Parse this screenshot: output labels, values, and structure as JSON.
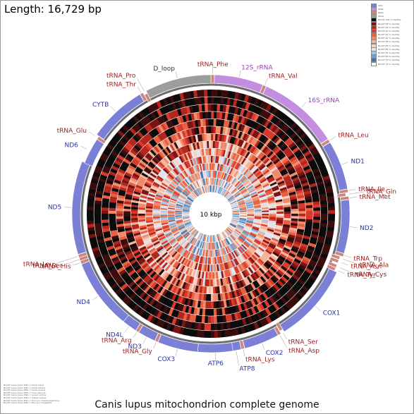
{
  "header": {
    "length_label": "Length: 16,729 bp"
  },
  "caption": "Canis lupus mitochondrion complete genome",
  "genome": {
    "length": 16729,
    "center_label": "10 kbp",
    "rings": 14,
    "colors": {
      "gene": "#7b7fd6",
      "rRNA": "#c48ee0",
      "dloop": "#9d9d9d",
      "tRNA": "#c9877f",
      "gene_label": "#2a33a8",
      "rRNA_label": "#9b3fb5",
      "tRNA_label": "#9b1c1c",
      "dloop_label": "#333333"
    },
    "features": [
      {
        "name": "tRNA_Phe",
        "type": "tRNA",
        "start": 1,
        "end": 68,
        "strand": "+"
      },
      {
        "name": "12S_rRNA",
        "type": "rRNA",
        "start": 69,
        "end": 1023,
        "strand": "+"
      },
      {
        "name": "tRNA_Val",
        "type": "tRNA",
        "start": 1024,
        "end": 1091,
        "strand": "+"
      },
      {
        "name": "16S_rRNA",
        "type": "rRNA",
        "start": 1092,
        "end": 2672,
        "strand": "+"
      },
      {
        "name": "tRNA_Leu",
        "type": "tRNA",
        "start": 2673,
        "end": 2747,
        "strand": "+"
      },
      {
        "name": "ND1",
        "type": "gene",
        "start": 2748,
        "end": 3704,
        "strand": "+"
      },
      {
        "name": "tRNA_Ile",
        "type": "tRNA",
        "start": 3705,
        "end": 3773,
        "strand": "+"
      },
      {
        "name": "tRNA_Gln",
        "type": "tRNA",
        "start": 3771,
        "end": 3843,
        "strand": "-"
      },
      {
        "name": "tRNA_Met",
        "type": "tRNA",
        "start": 3845,
        "end": 3913,
        "strand": "+"
      },
      {
        "name": "ND2",
        "type": "gene",
        "start": 3914,
        "end": 4955,
        "strand": "+"
      },
      {
        "name": "tRNA_Trp",
        "type": "tRNA",
        "start": 4956,
        "end": 5023,
        "strand": "+"
      },
      {
        "name": "tRNA_Ala",
        "type": "tRNA",
        "start": 5030,
        "end": 5098,
        "strand": "-"
      },
      {
        "name": "tRNA_Asn",
        "type": "tRNA",
        "start": 5100,
        "end": 5172,
        "strand": "-"
      },
      {
        "name": "tRNA_Cys",
        "type": "tRNA",
        "start": 5205,
        "end": 5270,
        "strand": "-"
      },
      {
        "name": "tRNA_Tyr",
        "type": "tRNA",
        "start": 5271,
        "end": 5338,
        "strand": "-"
      },
      {
        "name": "COX1",
        "type": "gene",
        "start": 5340,
        "end": 6884,
        "strand": "+"
      },
      {
        "name": "tRNA_Ser",
        "type": "tRNA",
        "start": 6882,
        "end": 6950,
        "strand": "-"
      },
      {
        "name": "tRNA_Asp",
        "type": "tRNA",
        "start": 6955,
        "end": 7022,
        "strand": "+"
      },
      {
        "name": "COX2",
        "type": "gene",
        "start": 7023,
        "end": 7706,
        "strand": "+"
      },
      {
        "name": "tRNA_Lys",
        "type": "tRNA",
        "start": 7710,
        "end": 7776,
        "strand": "+"
      },
      {
        "name": "ATP8",
        "type": "gene",
        "start": 7778,
        "end": 7981,
        "strand": "+"
      },
      {
        "name": "ATP6",
        "type": "gene",
        "start": 7939,
        "end": 8619,
        "strand": "+"
      },
      {
        "name": "COX3",
        "type": "gene",
        "start": 8619,
        "end": 9402,
        "strand": "+"
      },
      {
        "name": "tRNA_Gly",
        "type": "tRNA",
        "start": 9403,
        "end": 9471,
        "strand": "+"
      },
      {
        "name": "ND3",
        "type": "gene",
        "start": 9472,
        "end": 9818,
        "strand": "+"
      },
      {
        "name": "tRNA_Arg",
        "type": "tRNA",
        "start": 9819,
        "end": 9887,
        "strand": "+"
      },
      {
        "name": "ND4L",
        "type": "gene",
        "start": 9888,
        "end": 10184,
        "strand": "+"
      },
      {
        "name": "ND4",
        "type": "gene",
        "start": 10178,
        "end": 11555,
        "strand": "+"
      },
      {
        "name": "tRNA_His",
        "type": "tRNA",
        "start": 11556,
        "end": 11624,
        "strand": "+"
      },
      {
        "name": "tRNA_Ser",
        "type": "tRNA",
        "start": 11625,
        "end": 11684,
        "strand": "+"
      },
      {
        "name": "tRNA_Leu",
        "type": "tRNA",
        "start": 11685,
        "end": 11754,
        "strand": "+"
      },
      {
        "name": "ND5",
        "type": "gene",
        "start": 11755,
        "end": 13575,
        "strand": "+"
      },
      {
        "name": "ND6",
        "type": "gene",
        "start": 13559,
        "end": 14086,
        "strand": "-"
      },
      {
        "name": "tRNA_Glu",
        "type": "tRNA",
        "start": 14087,
        "end": 14155,
        "strand": "-"
      },
      {
        "name": "CYTB",
        "type": "gene",
        "start": 14160,
        "end": 15299,
        "strand": "+"
      },
      {
        "name": "tRNA_Thr",
        "type": "tRNA",
        "start": 15300,
        "end": 15370,
        "strand": "+"
      },
      {
        "name": "tRNA_Pro",
        "type": "tRNA",
        "start": 15370,
        "end": 15435,
        "strand": "-"
      },
      {
        "name": "D_loop",
        "type": "dloop",
        "start": 15436,
        "end": 16729,
        "strand": "+"
      }
    ],
    "heat_colors": [
      "#0b0b0b",
      "#3a0c0c",
      "#7a1414",
      "#b3261e",
      "#d63b2e",
      "#e8603f",
      "#f08a6a",
      "#f4b49a",
      "#f6d5c9",
      "#dfe6ef",
      "#a9c6e2",
      "#6fa0cf",
      "#3f75b2",
      "#ffffff"
    ]
  },
  "legend": {
    "entries": [
      {
        "label": "CDS",
        "color": "#7b7fd6"
      },
      {
        "label": "rRNA",
        "color": "#c48ee0"
      },
      {
        "label": "tRNA",
        "color": "#c9877f"
      },
      {
        "label": "Other",
        "color": "#9d9d9d"
      },
      {
        "label": "BLAST 100 % identity",
        "color": "#0b0b0b"
      },
      {
        "label": "BLAST 98 % identity",
        "color": "#7a1414"
      },
      {
        "label": "BLAST 96 % identity",
        "color": "#b3261e"
      },
      {
        "label": "BLAST 94 % identity",
        "color": "#d63b2e"
      },
      {
        "label": "BLAST 92 % identity",
        "color": "#e8603f"
      },
      {
        "label": "BLAST 90 % identity",
        "color": "#f08a6a"
      },
      {
        "label": "BLAST 88 % identity",
        "color": "#f4b49a"
      },
      {
        "label": "BLAST 86 % identity",
        "color": "#f6d5c9"
      },
      {
        "label": "BLAST 84 % identity",
        "color": "#dfe6ef"
      },
      {
        "label": "BLAST 82 % identity",
        "color": "#a9c6e2"
      },
      {
        "label": "BLAST 80 % identity",
        "color": "#6fa0cf"
      },
      {
        "label": "BLAST 78 % identity",
        "color": "#3f75b2"
      },
      {
        "label": "BLAST 76 % identity",
        "color": "#ffffff"
      }
    ]
  },
  "footnotes": [
    "BLAST Canis lupus DNA = Canis lupus",
    "BLAST Canis lupus DNA = Canis latrans",
    "BLAST Canis lupus DNA = Canis aureus",
    "BLAST Canis lupus DNA = Cuon alpinus",
    "BLAST Canis lupus DNA = Lycaon pictus",
    "BLAST Canis lupus DNA = Vulpes vulpes",
    "BLAST Canis lupus DNA = Urocyon cinereoargenteus",
    "BLAST Canis lupus DNA = Otocyon megalotis"
  ]
}
